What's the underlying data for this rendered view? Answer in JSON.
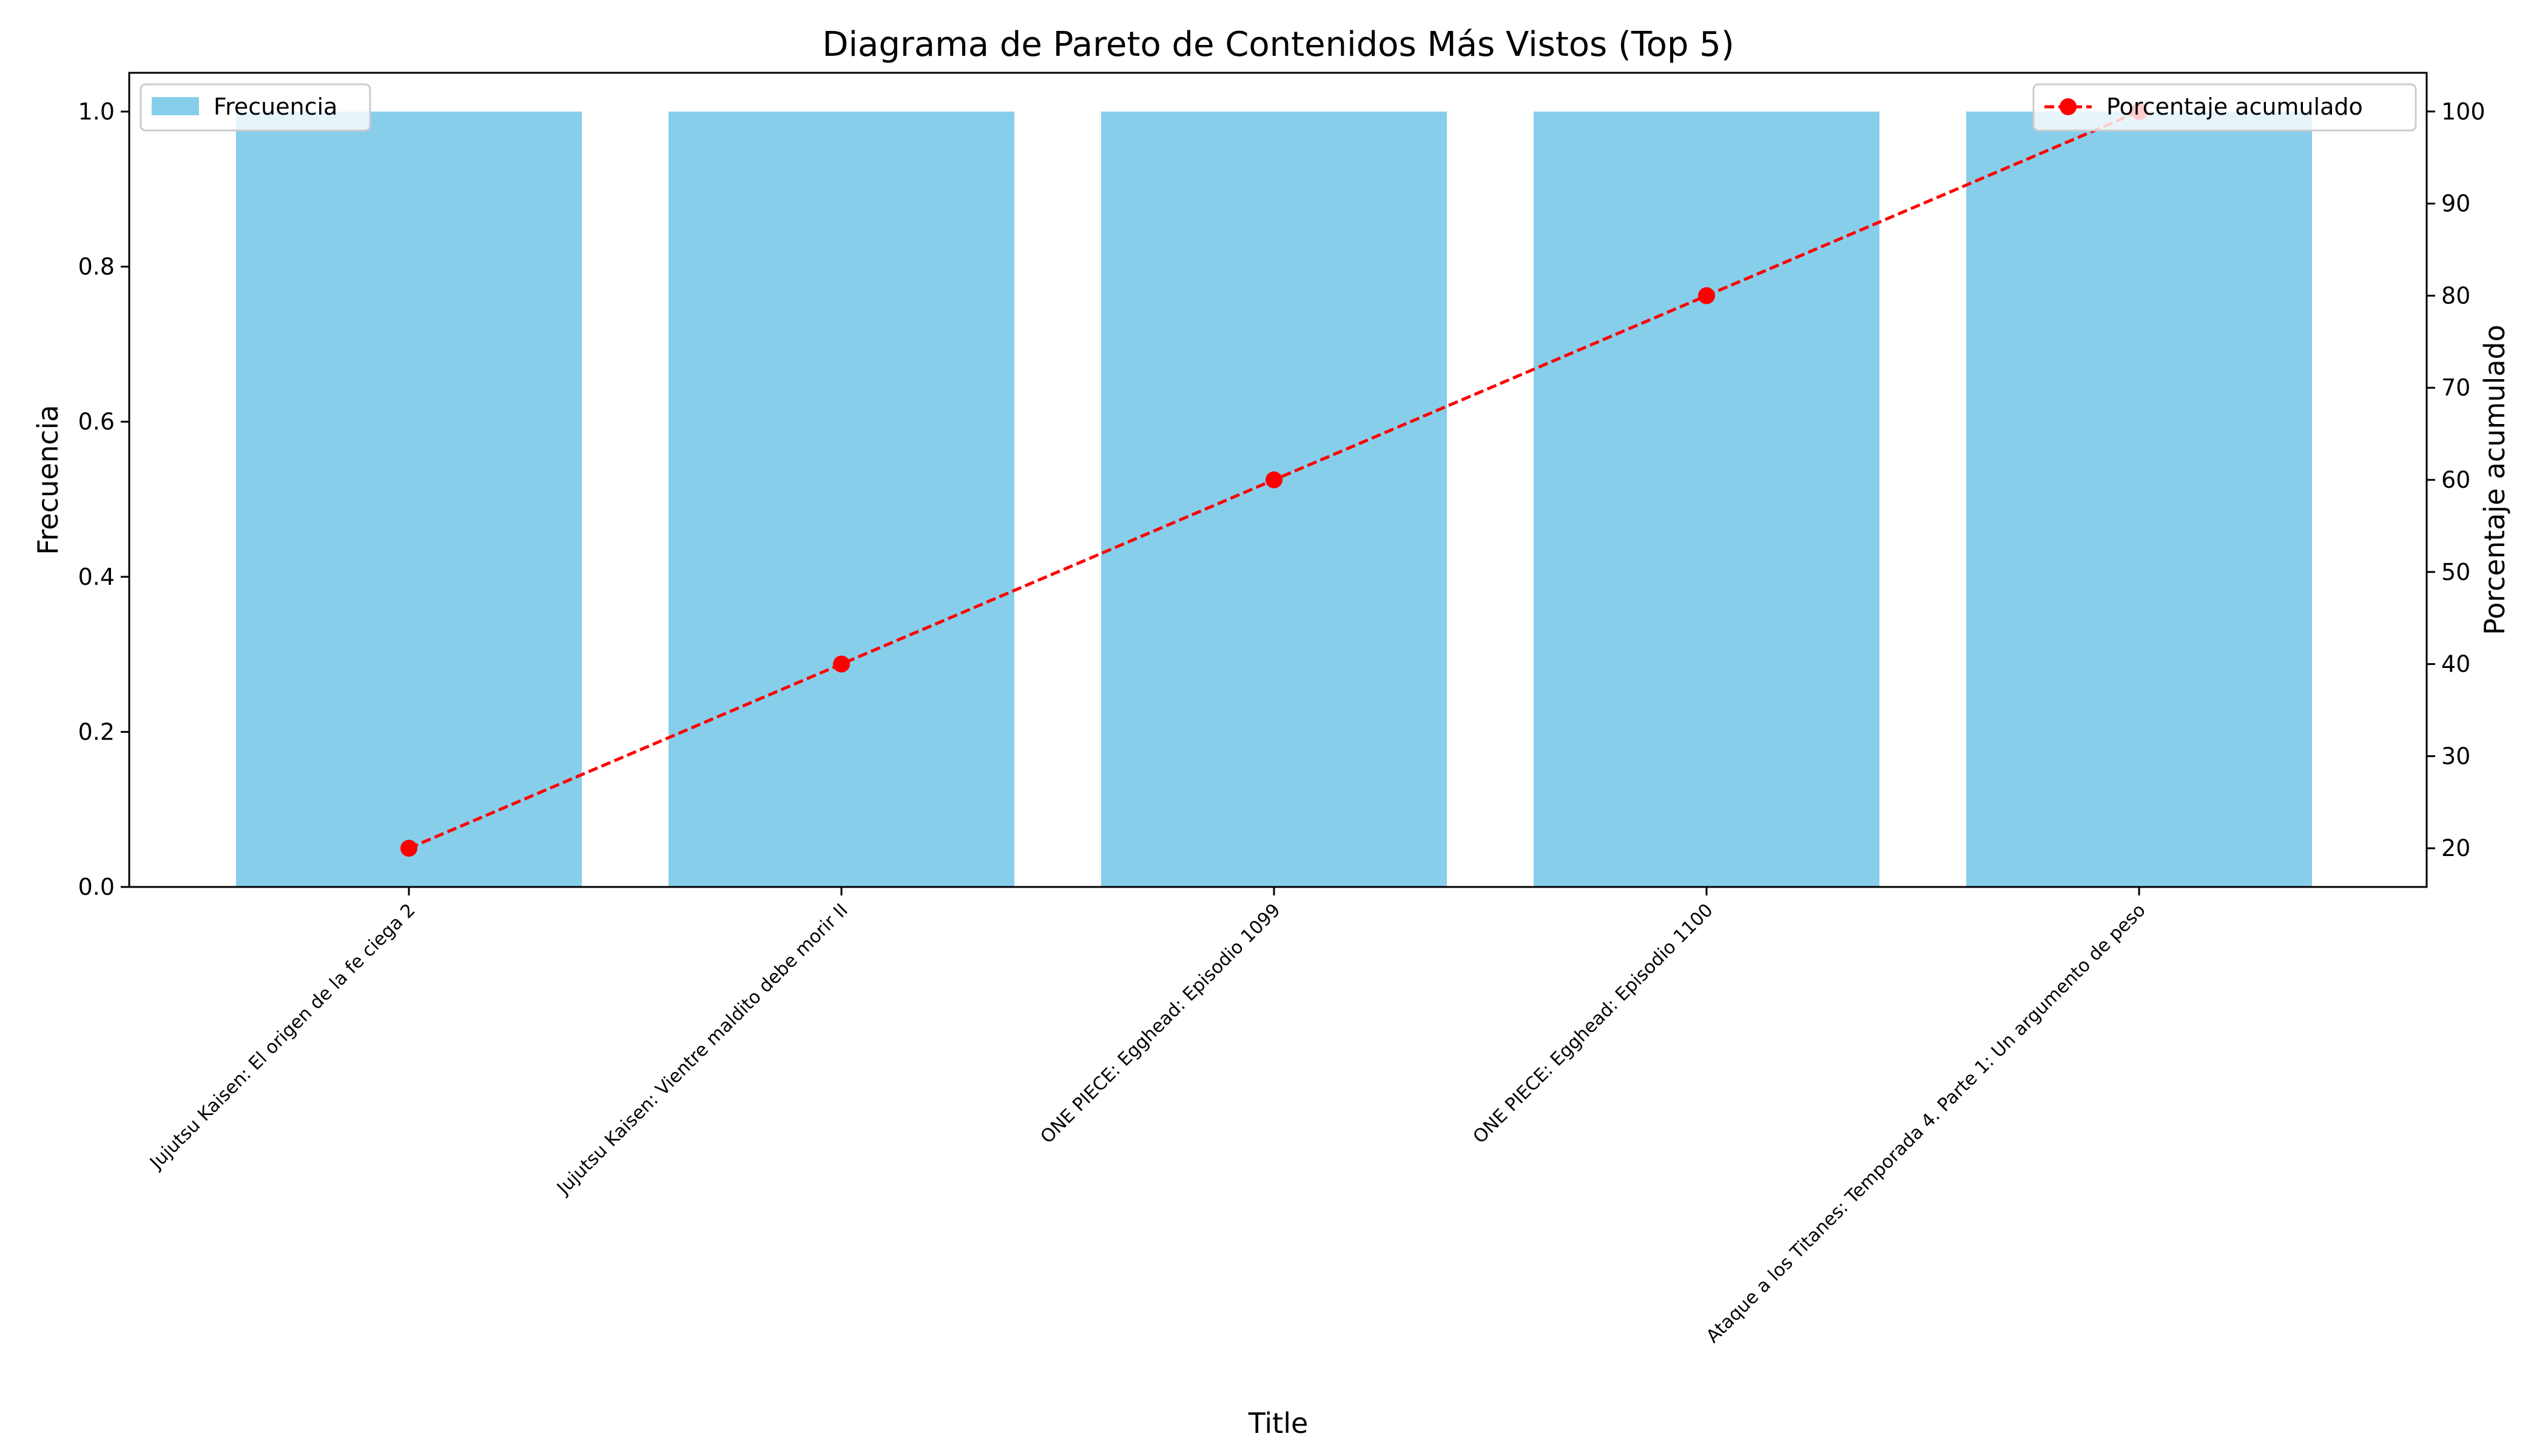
{
  "chart_data": {
    "type": "bar",
    "title": "Diagrama de Pareto de Contenidos Más Vistos (Top 5)",
    "xlabel": "Title",
    "ylabel": "Frecuencia",
    "y2label": "Porcentaje acumulado",
    "categories": [
      "Jujutsu Kaisen: El origen de la fe ciega 2",
      "Jujutsu Kaisen: Vientre maldito debe morir II",
      "ONE PIECE: Egghead: Episodio 1099",
      "ONE PIECE: Egghead: Episodio 1100",
      "Ataque a los Titanes: Temporada 4. Parte 1: Un argumento de peso"
    ],
    "series": [
      {
        "name": "Frecuencia",
        "kind": "bar",
        "axis": "left",
        "color": "#87ceeb",
        "values": [
          1,
          1,
          1,
          1,
          1
        ]
      },
      {
        "name": "Porcentaje acumulado",
        "kind": "line",
        "axis": "right",
        "color": "#ff0000",
        "line_style": "dashed",
        "marker": "circle",
        "values": [
          20,
          40,
          60,
          80,
          100
        ]
      }
    ],
    "ylim": [
      0,
      1.05
    ],
    "y2lim": [
      15.8,
      104.2
    ],
    "yticks": [
      "0.0",
      "0.2",
      "0.4",
      "0.6",
      "0.8",
      "1.0"
    ],
    "y2ticks": [
      "20",
      "30",
      "40",
      "50",
      "60",
      "70",
      "80",
      "90",
      "100"
    ],
    "grid": false,
    "legend_bar_position": "upper-left",
    "legend_line_position": "upper-right"
  }
}
